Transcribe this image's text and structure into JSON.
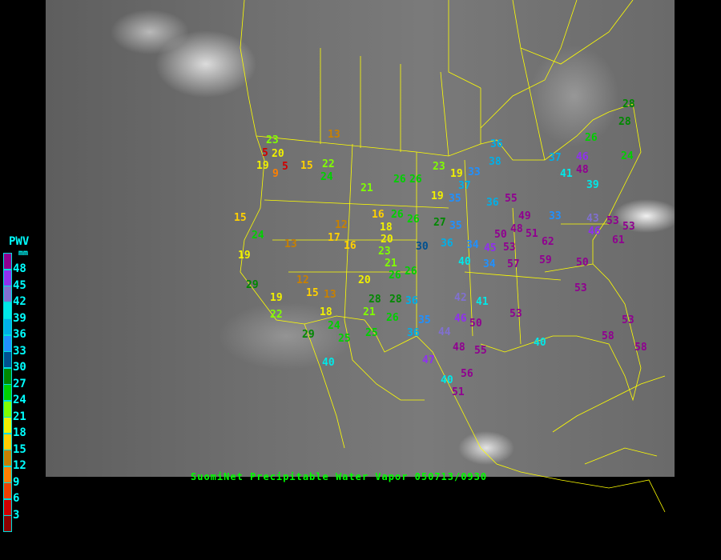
{
  "caption": "SuomiNet Precipitable Water Vapor 050713/0930",
  "legend": {
    "title": "PWV",
    "unit": "mm",
    "labels": [
      "48",
      "45",
      "42",
      "39",
      "36",
      "33",
      "30",
      "27",
      "24",
      "21",
      "18",
      "15",
      "12",
      "9",
      "6",
      "3"
    ],
    "colors": [
      "#900090",
      "#9030f0",
      "#8070d0",
      "#00e8e8",
      "#00b0e8",
      "#2090ff",
      "#005090",
      "#008800",
      "#00d000",
      "#80ff00",
      "#f0f000",
      "#ffd000",
      "#c88000",
      "#ff8000",
      "#f04000",
      "#d00000",
      "#8b0000"
    ]
  },
  "colors": {
    "background": "#000000",
    "borders": "#ffff00",
    "caption": "#00ff00",
    "legend_text": "#00ffff"
  },
  "stations": [
    "13",
    "23",
    "20",
    "5",
    "5",
    "19",
    "9",
    "15",
    "22",
    "24",
    "21",
    "26",
    "26",
    "23",
    "19",
    "33",
    "36",
    "38",
    "37",
    "35",
    "19",
    "37",
    "46",
    "26",
    "28",
    "28",
    "24",
    "41",
    "48",
    "39",
    "55",
    "36",
    "49",
    "48",
    "51",
    "33",
    "43",
    "53",
    "53",
    "46",
    "62",
    "50",
    "45",
    "53",
    "59",
    "57",
    "50",
    "61",
    "16",
    "26",
    "26",
    "27",
    "35",
    "12",
    "17",
    "15",
    "24",
    "13",
    "16",
    "18",
    "20",
    "23",
    "21",
    "26",
    "26",
    "30",
    "36",
    "34",
    "40",
    "34",
    "19",
    "12",
    "15",
    "13",
    "20",
    "29",
    "19",
    "22",
    "18",
    "21",
    "28",
    "28",
    "36",
    "26",
    "35",
    "41",
    "42",
    "46",
    "50",
    "53",
    "53",
    "53",
    "58",
    "58",
    "40",
    "29",
    "24",
    "25",
    "25",
    "36",
    "44",
    "48",
    "55",
    "40",
    "40",
    "47",
    "56",
    "51"
  ]
}
